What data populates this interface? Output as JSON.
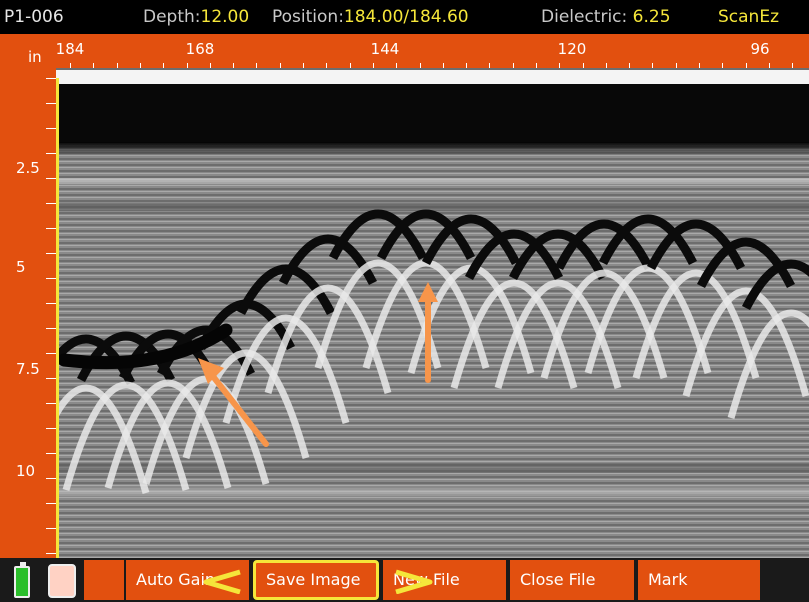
{
  "status": {
    "file": "P1-006",
    "depth_label": "Depth:",
    "depth_value": "12.00",
    "position_label": "Position:",
    "position_value": "184.00/184.60",
    "dielectric_label": "Dielectric:",
    "dielectric_value": "6.25",
    "mode": "ScanEz"
  },
  "hruler": {
    "unit": "in",
    "labels": [
      "184",
      "168",
      "144",
      "120",
      "96"
    ]
  },
  "vruler": {
    "labels": [
      "2.5",
      "5",
      "7.5",
      "10"
    ]
  },
  "toolbar": {
    "buttons": [
      {
        "label": "Auto Gain"
      },
      {
        "label": "Save Image"
      },
      {
        "label": "New File"
      },
      {
        "label": "Close File"
      },
      {
        "label": "Mark"
      }
    ]
  },
  "colors": {
    "accent": "#e2500f",
    "highlight": "#f5e63a",
    "arrow": "#f7954a"
  },
  "icons": [
    "battery-icon",
    "storage-icon",
    "chevron-left-icon",
    "chevron-right-icon"
  ]
}
